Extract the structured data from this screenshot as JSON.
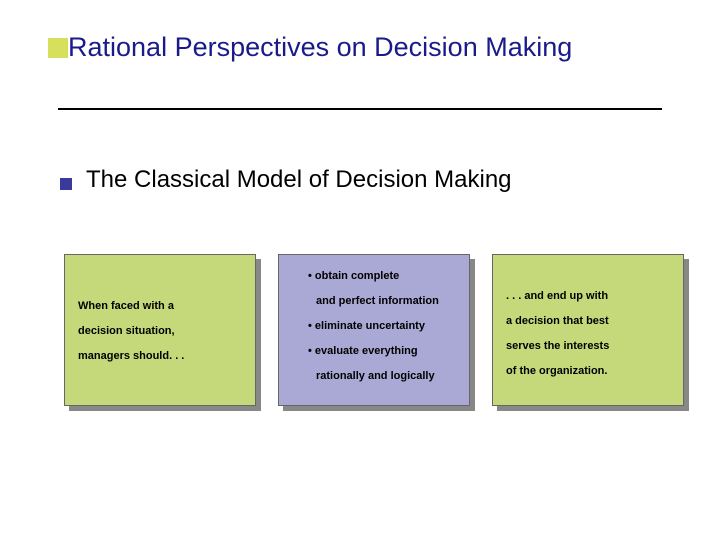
{
  "title": "Rational Perspectives on Decision Making",
  "subtitle": "The Classical Model of Decision Making",
  "colors": {
    "accent_square": "#d6e05a",
    "bullet_square": "#3a3a9a",
    "title_text": "#1a1a8a",
    "divider": "#000000",
    "box_green": "#c5d87a",
    "box_purple": "#aaa8d4",
    "box_shadow": "#888888",
    "box_border": "#666666"
  },
  "box1": {
    "line1": "When faced with a",
    "line2": "decision situation,",
    "line3": "managers should. . ."
  },
  "box2": {
    "line1": "• obtain complete",
    "line2": "and perfect information",
    "line3": "• eliminate uncertainty",
    "line4": "• evaluate everything",
    "line5": "rationally and logically"
  },
  "box3": {
    "line1": ". . . and end up with",
    "line2": "a decision that best",
    "line3": "serves the interests",
    "line4": "of the organization."
  }
}
